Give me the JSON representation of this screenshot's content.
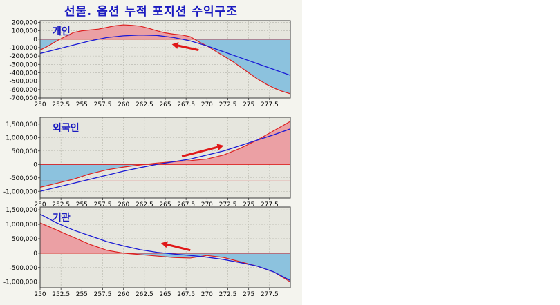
{
  "title": "선물. 옵션 누적 포지션 수익구조",
  "colors": {
    "panel_bg": "#e6e6de",
    "grid": "#b4b4aa",
    "positive_fill": "#eba0a4",
    "negative_fill": "#8cc2de",
    "red_line": "#dd1f1f",
    "blue_line": "#1a1ad6",
    "arrow": "#e01818",
    "label_text": "#1a1ac0"
  },
  "chart_data": [
    {
      "type": "area",
      "label": "개인",
      "x_ticks": [
        "250",
        "252.5",
        "255",
        "257.5",
        "260",
        "262.5",
        "265",
        "267.5",
        "270",
        "272.5",
        "275",
        "277.5"
      ],
      "y_ticks": [
        "200,000",
        "100,000",
        "0",
        "-100,000",
        "-200,000",
        "-300,000",
        "-400,000",
        "-500,000",
        "-600,000",
        "-700,000"
      ],
      "xlim": [
        250,
        280
      ],
      "ylim": [
        -700000,
        220000
      ],
      "area_series": {
        "x": [
          250,
          251,
          252,
          253,
          254,
          255,
          256,
          257,
          258,
          259,
          260,
          261,
          262,
          263,
          264,
          265,
          266,
          267,
          268,
          269,
          270,
          271,
          272,
          273,
          274,
          275,
          276,
          277,
          278,
          279,
          280
        ],
        "y": [
          -130000,
          -80000,
          -20000,
          30000,
          80000,
          100000,
          110000,
          120000,
          140000,
          160000,
          170000,
          165000,
          155000,
          130000,
          100000,
          75000,
          60000,
          50000,
          30000,
          -30000,
          -80000,
          -140000,
          -200000,
          -260000,
          -330000,
          -400000,
          -470000,
          -530000,
          -580000,
          -620000,
          -650000
        ]
      },
      "blue_line": {
        "x": [
          250,
          252,
          254,
          256,
          258,
          260,
          262,
          264,
          266,
          268,
          270,
          272,
          274,
          276,
          278,
          280
        ],
        "y": [
          -170000,
          -120000,
          -70000,
          -20000,
          20000,
          40000,
          50000,
          45000,
          20000,
          -20000,
          -80000,
          -150000,
          -220000,
          -290000,
          -360000,
          -430000
        ]
      },
      "arrow": {
        "from": [
          269,
          -130000
        ],
        "to": [
          265.8,
          -60000
        ]
      }
    },
    {
      "type": "area",
      "label": "외국인",
      "x_ticks": [
        "250",
        "252.5",
        "255",
        "257.5",
        "260",
        "262.5",
        "265",
        "267.5",
        "270",
        "272.5",
        "275",
        "277.5"
      ],
      "y_ticks": [
        "1,500,000",
        "1,000,000",
        "500,000",
        "0",
        "-500,000",
        "-1,000,000"
      ],
      "xlim": [
        250,
        280
      ],
      "ylim": [
        -1250000,
        1750000
      ],
      "area_series": {
        "x": [
          250,
          252,
          254,
          256,
          258,
          260,
          262,
          264,
          266,
          268,
          270,
          272,
          274,
          276,
          278,
          280
        ],
        "y": [
          -850000,
          -700000,
          -550000,
          -350000,
          -200000,
          -100000,
          -20000,
          50000,
          100000,
          140000,
          200000,
          350000,
          600000,
          900000,
          1250000,
          1600000
        ]
      },
      "blue_line": {
        "x": [
          250,
          252,
          254,
          256,
          258,
          260,
          262,
          264,
          266,
          268,
          270,
          272,
          274,
          276,
          278,
          280
        ],
        "y": [
          -1000000,
          -850000,
          -700000,
          -550000,
          -400000,
          -250000,
          -120000,
          0,
          100000,
          200000,
          350000,
          500000,
          700000,
          900000,
          1100000,
          1320000
        ]
      },
      "flat_line": {
        "y": -620000
      },
      "arrow": {
        "from": [
          267,
          300000
        ],
        "to": [
          272,
          700000
        ]
      }
    },
    {
      "type": "area",
      "label": "기관",
      "x_ticks": [
        "250",
        "252.5",
        "255",
        "257.5",
        "260",
        "262.5",
        "265",
        "267.5",
        "270",
        "272.5",
        "275",
        "277.5"
      ],
      "y_ticks": [
        "1,500,000",
        "1,000,000",
        "500,000",
        "0",
        "-500,000",
        "-1,000,000"
      ],
      "xlim": [
        250,
        280
      ],
      "ylim": [
        -1200000,
        1600000
      ],
      "area_series": {
        "x": [
          250,
          252,
          254,
          256,
          258,
          260,
          262,
          264,
          266,
          268,
          270,
          272,
          274,
          276,
          278,
          280
        ],
        "y": [
          1050000,
          800000,
          550000,
          300000,
          100000,
          0,
          -50000,
          -100000,
          -150000,
          -170000,
          -80000,
          -150000,
          -300000,
          -450000,
          -650000,
          -1000000
        ]
      },
      "blue_line": {
        "x": [
          250,
          252,
          254,
          256,
          258,
          260,
          262,
          264,
          266,
          268,
          270,
          272,
          274,
          276,
          278,
          280
        ],
        "y": [
          1350000,
          1050000,
          800000,
          600000,
          400000,
          250000,
          120000,
          30000,
          -30000,
          -80000,
          -140000,
          -220000,
          -330000,
          -450000,
          -650000,
          -950000
        ]
      },
      "arrow": {
        "from": [
          268,
          100000
        ],
        "to": [
          264.5,
          350000
        ]
      }
    }
  ]
}
